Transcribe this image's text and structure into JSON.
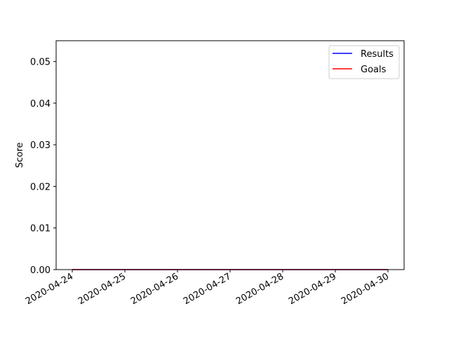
{
  "chart_data": {
    "type": "line",
    "title": "",
    "xlabel": "",
    "ylabel": "Score",
    "x": [
      "2020-04-24",
      "2020-04-25",
      "2020-04-26",
      "2020-04-27",
      "2020-04-28",
      "2020-04-29",
      "2020-04-30"
    ],
    "x_ticks": [
      "2020-04-24",
      "2020-04-25",
      "2020-04-26",
      "2020-04-27",
      "2020-04-28",
      "2020-04-29",
      "2020-04-30"
    ],
    "y_ticks": [
      "0.00",
      "0.01",
      "0.02",
      "0.03",
      "0.04",
      "0.05"
    ],
    "ylim": [
      0,
      0.055
    ],
    "grid": false,
    "legend_position": "top-right",
    "series": [
      {
        "name": "Results",
        "color": "#0000ff",
        "values": [
          0,
          0,
          0,
          0,
          0,
          0,
          0
        ]
      },
      {
        "name": "Goals",
        "color": "#ff0000",
        "values": [
          0,
          0,
          0,
          0,
          0,
          0,
          0
        ]
      }
    ]
  }
}
